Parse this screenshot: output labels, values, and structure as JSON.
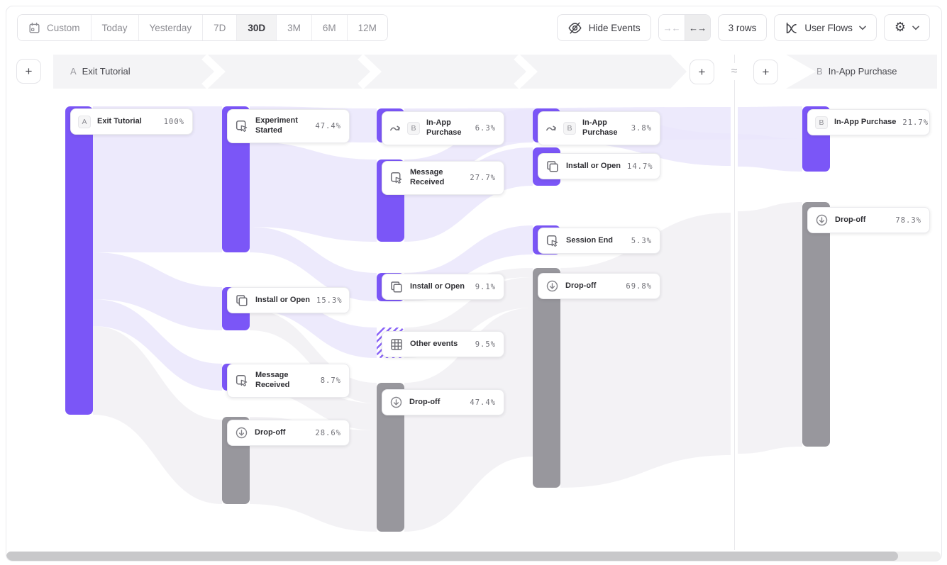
{
  "toolbar": {
    "date_ranges": [
      "Custom",
      "Today",
      "Yesterday",
      "7D",
      "30D",
      "3M",
      "6M",
      "12M"
    ],
    "active_range": "30D",
    "hide_events_label": "Hide Events",
    "rows_label": "3 rows",
    "view_selector_label": "User Flows"
  },
  "header": {
    "add_step_symbol": "+",
    "approx_symbol": "≈",
    "flow_a": {
      "badge": "A",
      "label": "Exit Tutorial"
    },
    "flow_b": {
      "badge": "B",
      "label": "In-App Purchase"
    }
  },
  "chart_data": {
    "type": "sankey",
    "colors": {
      "event": "#7b56f7",
      "dropoff": "#98979d",
      "other_hatch": "#8a64f8",
      "ribbon": "#eae6fb",
      "ribbon_dropoff": "#f2f1f4"
    },
    "nodes": [
      {
        "col": 0,
        "label": "Exit Tutorial",
        "value": "100%",
        "kind": "event",
        "badge": "A",
        "icon": null,
        "two_line": false,
        "bar": [
          92,
          150,
          435
        ],
        "card": [
          99,
          153
        ]
      },
      {
        "col": 1,
        "label": "Experiment Started",
        "value": "47.4%",
        "kind": "event",
        "badge": null,
        "icon": "cursor-click",
        "two_line": true,
        "bar": [
          313,
          150,
          206
        ],
        "card": [
          320,
          154
        ]
      },
      {
        "col": 1,
        "label": "Install or Open",
        "value": "15.3%",
        "kind": "event",
        "badge": null,
        "icon": "copy",
        "two_line": false,
        "bar": [
          313,
          405,
          61
        ],
        "card": [
          320,
          405
        ]
      },
      {
        "col": 1,
        "label": "Message Received",
        "value": "8.7%",
        "kind": "event",
        "badge": null,
        "icon": "cursor-click",
        "two_line": true,
        "bar": [
          313,
          513,
          38
        ],
        "card": [
          320,
          513
        ]
      },
      {
        "col": 1,
        "label": "Drop-off",
        "value": "28.6%",
        "kind": "dropoff",
        "badge": null,
        "icon": "arrow-down-circle",
        "two_line": false,
        "bar": [
          313,
          588,
          123
        ],
        "card": [
          320,
          592
        ]
      },
      {
        "col": 2,
        "label": "In-App Purchase",
        "value": "6.3%",
        "kind": "jump",
        "badge": "B",
        "icon": "jump-arrow",
        "two_line": true,
        "bar": [
          531,
          153,
          48
        ],
        "card": [
          538,
          157
        ]
      },
      {
        "col": 2,
        "label": "Message Received",
        "value": "27.7%",
        "kind": "event",
        "badge": null,
        "icon": "cursor-click",
        "two_line": true,
        "bar": [
          531,
          225,
          116
        ],
        "card": [
          538,
          227
        ]
      },
      {
        "col": 2,
        "label": "Install or Open",
        "value": "9.1%",
        "kind": "event",
        "badge": null,
        "icon": "copy",
        "two_line": false,
        "bar": [
          531,
          385,
          40
        ],
        "card": [
          538,
          386
        ]
      },
      {
        "col": 2,
        "label": "Other events",
        "value": "9.5%",
        "kind": "other",
        "badge": null,
        "icon": "grid",
        "two_line": false,
        "bar": [
          531,
          462,
          43
        ],
        "card": [
          538,
          467
        ]
      },
      {
        "col": 2,
        "label": "Drop-off",
        "value": "47.4%",
        "kind": "dropoff",
        "badge": null,
        "icon": "arrow-down-circle",
        "two_line": false,
        "bar": [
          531,
          540,
          210
        ],
        "card": [
          538,
          549
        ]
      },
      {
        "col": 3,
        "label": "In-App Purchase",
        "value": "3.8%",
        "kind": "jump",
        "badge": "B",
        "icon": "jump-arrow",
        "two_line": true,
        "bar": [
          751,
          153,
          48
        ],
        "card": [
          758,
          157
        ]
      },
      {
        "col": 3,
        "label": "Install or Open",
        "value": "14.7%",
        "kind": "event",
        "badge": null,
        "icon": "copy",
        "two_line": false,
        "bar": [
          751,
          208,
          54
        ],
        "card": [
          758,
          216
        ]
      },
      {
        "col": 3,
        "label": "Session End",
        "value": "5.3%",
        "kind": "event",
        "badge": null,
        "icon": "cursor-click",
        "two_line": false,
        "bar": [
          751,
          318,
          41
        ],
        "card": [
          758,
          321
        ]
      },
      {
        "col": 3,
        "label": "Drop-off",
        "value": "69.8%",
        "kind": "dropoff",
        "badge": null,
        "icon": "arrow-down-circle",
        "two_line": false,
        "bar": [
          751,
          378,
          310
        ],
        "card": [
          758,
          385
        ]
      },
      {
        "col": 4,
        "label": "In-App Purchase",
        "value": "21.7%",
        "kind": "event",
        "badge": "B",
        "icon": null,
        "two_line": false,
        "bar": [
          1131,
          150,
          92
        ],
        "card": [
          1138,
          154
        ]
      },
      {
        "col": 4,
        "label": "Drop-off",
        "value": "78.3%",
        "kind": "dropoff",
        "badge": null,
        "icon": "arrow-down-circle",
        "two_line": false,
        "bar": [
          1131,
          285,
          345
        ],
        "card": [
          1138,
          292
        ]
      }
    ],
    "links": [
      {
        "source": 0,
        "target": 1
      },
      {
        "source": 0,
        "target": 2
      },
      {
        "source": 0,
        "target": 3
      },
      {
        "source": 0,
        "target": 4
      },
      {
        "source": 1,
        "target": 5
      },
      {
        "source": 1,
        "target": 6
      },
      {
        "source": 1,
        "target": 7
      },
      {
        "source": 2,
        "target": 8
      },
      {
        "source": 2,
        "target": 9
      },
      {
        "source": 3,
        "target": 9
      },
      {
        "source": 4,
        "target": 9
      },
      {
        "source": 5,
        "target": 14
      },
      {
        "source": 6,
        "target": 10
      },
      {
        "source": 6,
        "target": 11
      },
      {
        "source": 7,
        "target": 12
      },
      {
        "source": 7,
        "target": 13
      },
      {
        "source": 8,
        "target": 13
      },
      {
        "source": 9,
        "target": 13
      },
      {
        "source": 10,
        "target": 14
      },
      {
        "source": 13,
        "target": 15
      }
    ]
  }
}
